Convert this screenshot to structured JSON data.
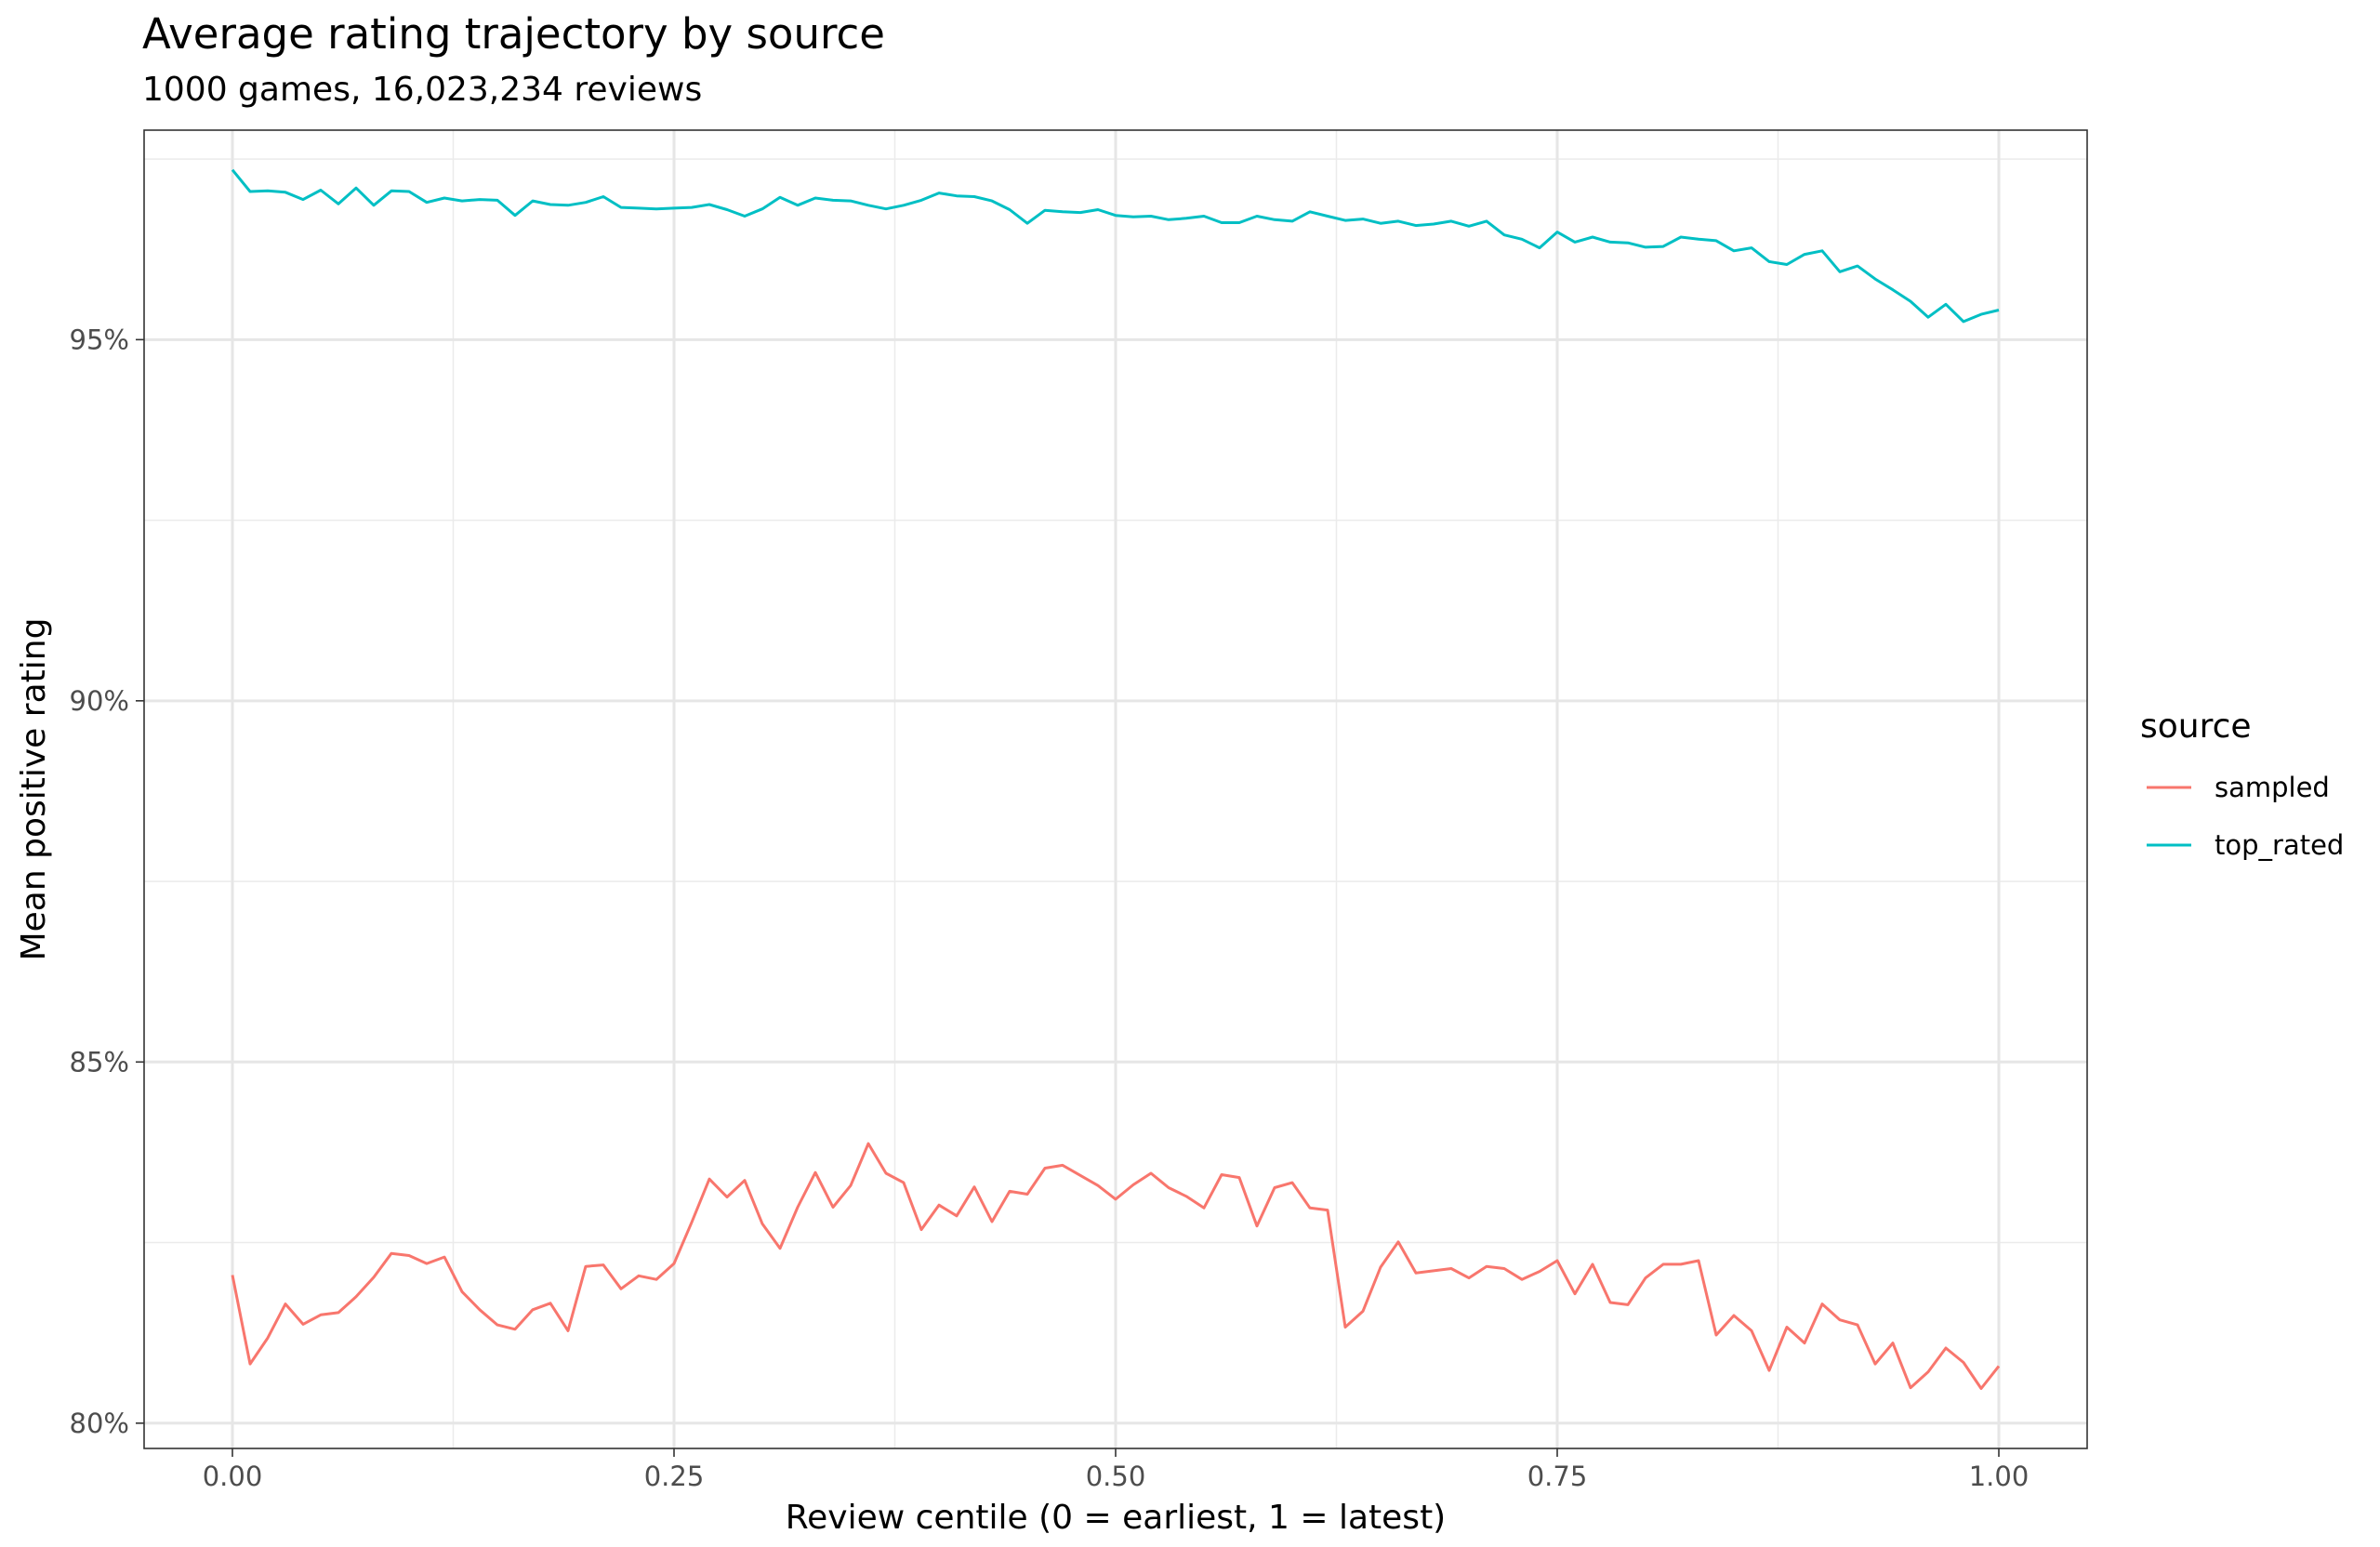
{
  "chart_data": {
    "type": "line",
    "title": "Average rating trajectory by source",
    "subtitle": "1000 games, 16,023,234 reviews",
    "xlabel": "Review centile (0 = earliest, 1 = latest)",
    "ylabel": "Mean positive rating",
    "xlim": [
      -0.05,
      1.05
    ],
    "ylim": [
      79.65,
      97.9
    ],
    "x_ticks": [
      0,
      0.25,
      0.5,
      0.75,
      1
    ],
    "x_tick_labels": [
      "0.00",
      "0.25",
      "0.50",
      "0.75",
      "1.00"
    ],
    "y_ticks": [
      80,
      85,
      90,
      95
    ],
    "y_tick_labels": [
      "80%",
      "85%",
      "90%",
      "95%"
    ],
    "y_minor_ticks": [
      82.5,
      87.5,
      92.5,
      97.5
    ],
    "x_minor_ticks": [
      0.125,
      0.375,
      0.625,
      0.875
    ],
    "grid": true,
    "legend_title": "source",
    "legend_position": "right",
    "x": [
      0,
      0.01,
      0.02,
      0.03,
      0.04,
      0.05,
      0.06,
      0.07,
      0.08,
      0.09,
      0.1,
      0.11,
      0.12,
      0.13,
      0.14,
      0.15,
      0.16,
      0.17,
      0.18,
      0.19,
      0.2,
      0.21,
      0.22,
      0.23,
      0.24,
      0.25,
      0.26,
      0.27,
      0.28,
      0.29,
      0.3,
      0.31,
      0.32,
      0.33,
      0.34,
      0.35,
      0.36,
      0.37,
      0.38,
      0.39,
      0.4,
      0.41,
      0.42,
      0.43,
      0.44,
      0.45,
      0.46,
      0.47,
      0.48,
      0.49,
      0.5,
      0.51,
      0.52,
      0.53,
      0.54,
      0.55,
      0.56,
      0.57,
      0.58,
      0.59,
      0.6,
      0.61,
      0.62,
      0.63,
      0.64,
      0.65,
      0.66,
      0.67,
      0.68,
      0.69,
      0.7,
      0.71,
      0.72,
      0.73,
      0.74,
      0.75,
      0.76,
      0.77,
      0.78,
      0.79,
      0.8,
      0.81,
      0.82,
      0.83,
      0.84,
      0.85,
      0.86,
      0.87,
      0.88,
      0.89,
      0.9,
      0.91,
      0.92,
      0.93,
      0.94,
      0.95,
      0.96,
      0.97,
      0.98,
      0.99,
      1
    ],
    "series": [
      {
        "name": "sampled",
        "color": "#F8766D",
        "values": [
          82.05,
          80.82,
          81.18,
          81.65,
          81.37,
          81.5,
          81.53,
          81.75,
          82.02,
          82.35,
          82.32,
          82.21,
          82.3,
          81.82,
          81.57,
          81.36,
          81.3,
          81.57,
          81.66,
          81.28,
          82.17,
          82.19,
          81.86,
          82.04,
          81.99,
          82.21,
          82.78,
          83.38,
          83.13,
          83.36,
          82.76,
          82.42,
          82.99,
          83.47,
          82.99,
          83.29,
          83.87,
          83.46,
          83.33,
          82.68,
          83.02,
          82.87,
          83.27,
          82.79,
          83.21,
          83.17,
          83.53,
          83.57,
          83.43,
          83.29,
          83.1,
          83.3,
          83.46,
          83.26,
          83.14,
          82.98,
          83.44,
          83.4,
          82.73,
          83.26,
          83.33,
          82.98,
          82.95,
          81.33,
          81.55,
          82.16,
          82.51,
          82.08,
          82.11,
          82.14,
          82.01,
          82.17,
          82.14,
          81.99,
          82.1,
          82.25,
          81.79,
          82.2,
          81.67,
          81.64,
          82.01,
          82.2,
          82.2,
          82.25,
          81.22,
          81.49,
          81.28,
          80.73,
          81.33,
          81.11,
          81.65,
          81.43,
          81.36,
          80.82,
          81.11,
          80.49,
          80.71,
          81.04,
          80.84,
          80.48,
          80.79
        ]
      },
      {
        "name": "top_rated",
        "color": "#00BFC4",
        "values": [
          97.35,
          97.05,
          97.06,
          97.04,
          96.94,
          97.07,
          96.88,
          97.1,
          96.86,
          97.06,
          97.05,
          96.9,
          96.96,
          96.92,
          96.94,
          96.93,
          96.72,
          96.92,
          96.87,
          96.86,
          96.9,
          96.98,
          96.83,
          96.82,
          96.81,
          96.82,
          96.83,
          96.87,
          96.8,
          96.71,
          96.81,
          96.97,
          96.86,
          96.96,
          96.93,
          96.92,
          96.86,
          96.81,
          96.86,
          96.93,
          97.03,
          96.99,
          96.98,
          96.92,
          96.8,
          96.61,
          96.79,
          96.77,
          96.76,
          96.8,
          96.72,
          96.7,
          96.71,
          96.66,
          96.68,
          96.71,
          96.62,
          96.62,
          96.71,
          96.66,
          96.64,
          96.77,
          96.71,
          96.65,
          96.67,
          96.61,
          96.64,
          96.58,
          96.6,
          96.64,
          96.57,
          96.64,
          96.45,
          96.39,
          96.27,
          96.49,
          96.35,
          96.42,
          96.35,
          96.34,
          96.28,
          96.29,
          96.42,
          96.39,
          96.37,
          96.23,
          96.27,
          96.08,
          96.04,
          96.18,
          96.23,
          95.94,
          96.02,
          95.84,
          95.69,
          95.53,
          95.31,
          95.49,
          95.25,
          95.35,
          95.41
        ]
      }
    ]
  }
}
